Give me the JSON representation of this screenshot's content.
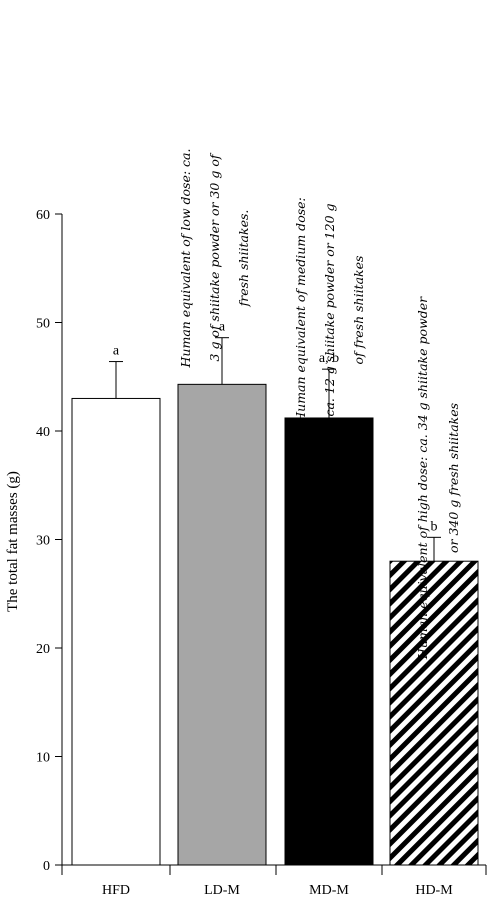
{
  "chart_data": {
    "type": "bar",
    "ylabel": "The total fat masses (g)",
    "ylim": [
      0,
      60
    ],
    "yticks": [
      0,
      10,
      20,
      30,
      40,
      50,
      60
    ],
    "categories": [
      "HFD",
      "LD-M",
      "MD-M",
      "HD-M"
    ],
    "values": [
      43,
      44.3,
      41.2,
      28
    ],
    "errors": [
      3.4,
      4.3,
      4.5,
      2.2
    ],
    "significance": [
      "a",
      "a",
      "a, b",
      "b"
    ],
    "bar_fills": [
      "white",
      "#a6a6a6",
      "black",
      "diagonal-stripes"
    ],
    "annotations": [
      {
        "category": "LD-M",
        "lines": [
          "Human equivalent of low dose: ca.",
          "3 g of shiitake powder or 30 g of",
          "fresh shiitakes."
        ]
      },
      {
        "category": "MD-M",
        "lines": [
          "Human equivalent of medium dose:",
          "ca. 12 g shiitake powder or 120 g",
          "of fresh shiitakes"
        ]
      },
      {
        "category": "HD-M",
        "lines": [
          "Human equivalent of high dose: ca. 34 g shiitake powder",
          "or 340 g fresh shiitakes"
        ]
      }
    ]
  }
}
